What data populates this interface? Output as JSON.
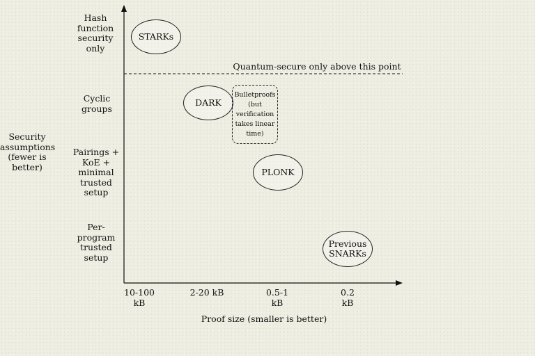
{
  "y_axis_title": "Security assumptions (fewer is better)",
  "x_axis_title": "Proof size (smaller is better)",
  "y_levels": [
    "Hash function security only",
    "Cyclic groups",
    "Pairings + KoE + minimal trusted setup",
    "Per-program trusted setup"
  ],
  "x_levels": [
    "10-100 kB",
    "2-20 kB",
    "0.5-1 kB",
    "0.2 kB"
  ],
  "quantum_line_label": "Quantum-secure only above this point",
  "systems": {
    "starks": "STARKs",
    "dark": "DARK",
    "bulletproofs": "Bulletproofs (but verification takes linear time)",
    "plonk": "PLONK",
    "snarks": "Previous SNARKs"
  }
}
